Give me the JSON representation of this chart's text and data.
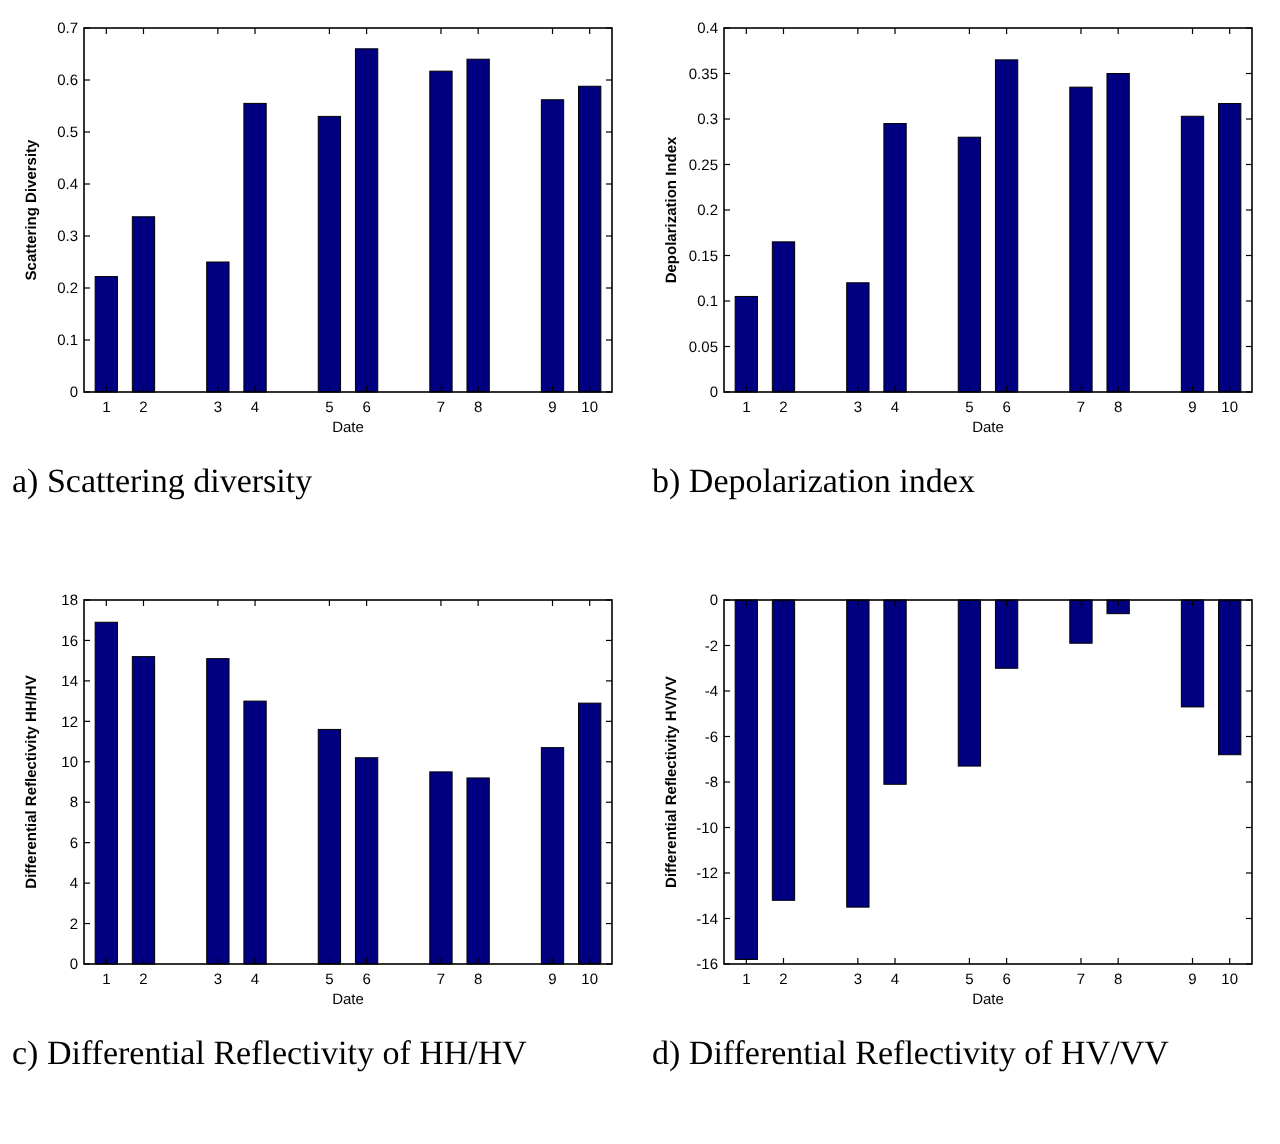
{
  "chart_data": [
    {
      "type": "bar",
      "title": "a)  Scattering diversity",
      "xlabel": "Date",
      "ylabel": "Scattering Diversity",
      "categories": [
        "1",
        "2",
        null,
        "3",
        "4",
        null,
        "5",
        "6",
        null,
        "7",
        "8",
        null,
        "9",
        "10"
      ],
      "ylim": [
        0,
        0.7
      ],
      "yticks": [
        0,
        0.1,
        0.2,
        0.3,
        0.4,
        0.5,
        0.6,
        0.7
      ],
      "color": "#000080",
      "values": [
        0.222,
        0.337,
        null,
        0.25,
        0.555,
        null,
        0.53,
        0.66,
        null,
        0.617,
        0.64,
        null,
        0.562,
        0.588
      ]
    },
    {
      "type": "bar",
      "title": "b)  Depolarization index",
      "xlabel": "Date",
      "ylabel": "Depolarization Index",
      "categories": [
        "1",
        "2",
        null,
        "3",
        "4",
        null,
        "5",
        "6",
        null,
        "7",
        "8",
        null,
        "9",
        "10"
      ],
      "ylim": [
        0,
        0.4
      ],
      "yticks": [
        0,
        0.05,
        0.1,
        0.15,
        0.2,
        0.25,
        0.3,
        0.35,
        0.4
      ],
      "color": "#000080",
      "values": [
        0.105,
        0.165,
        null,
        0.12,
        0.295,
        null,
        0.28,
        0.365,
        null,
        0.335,
        0.35,
        null,
        0.303,
        0.317
      ]
    },
    {
      "type": "bar",
      "title": "c)  Differential Reflectivity of HH/HV",
      "xlabel": "Date",
      "ylabel": "Differential Reflectivity HH/HV",
      "categories": [
        "1",
        "2",
        null,
        "3",
        "4",
        null,
        "5",
        "6",
        null,
        "7",
        "8",
        null,
        "9",
        "10"
      ],
      "ylim": [
        0,
        18
      ],
      "yticks": [
        0,
        2,
        4,
        6,
        8,
        10,
        12,
        14,
        16,
        18
      ],
      "color": "#000080",
      "values": [
        16.9,
        15.2,
        null,
        15.1,
        13.0,
        null,
        11.6,
        10.2,
        null,
        9.5,
        9.2,
        null,
        10.7,
        12.9
      ]
    },
    {
      "type": "bar",
      "title": "d)  Differential Reflectivity of HV/VV",
      "xlabel": "Date",
      "ylabel": "Differential Reflectivity HV/VV",
      "categories": [
        "1",
        "2",
        null,
        "3",
        "4",
        null,
        "5",
        "6",
        null,
        "7",
        "8",
        null,
        "9",
        "10"
      ],
      "ylim": [
        -16,
        0
      ],
      "yticks": [
        -16,
        -14,
        -12,
        -10,
        -8,
        -6,
        -4,
        -2,
        0
      ],
      "color": "#000080",
      "values": [
        -15.8,
        -13.2,
        null,
        -13.5,
        -8.1,
        null,
        -7.3,
        -3.0,
        null,
        -1.9,
        -0.6,
        null,
        -4.7,
        -6.8
      ]
    }
  ]
}
